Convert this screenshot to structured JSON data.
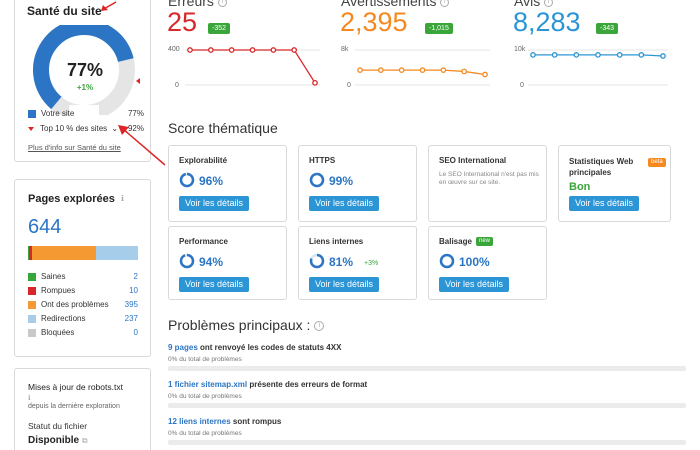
{
  "site_health": {
    "title": "Santé du site",
    "value": "77%",
    "delta": "+1%",
    "legend": [
      {
        "label": "Votre site",
        "value": "77%",
        "color": "#2b75c4"
      },
      {
        "label": "Top 10 % des sites",
        "value": "92%",
        "color": "#e02424"
      }
    ],
    "more_link": "Plus d'info sur Santé du site",
    "percent": 77
  },
  "crawled": {
    "title": "Pages explorées",
    "count": "644",
    "items": [
      {
        "label": "Saines",
        "value": "2",
        "color": "#3aa63a"
      },
      {
        "label": "Rompues",
        "value": "10",
        "color": "#d8282a"
      },
      {
        "label": "Ont des problèmes",
        "value": "395",
        "color": "#f59a33"
      },
      {
        "label": "Redirections",
        "value": "237",
        "color": "#a6cde9"
      },
      {
        "label": "Bloquées",
        "value": "0",
        "color": "#c8c8c8"
      }
    ]
  },
  "robots": {
    "title": "Mises à jour de robots.txt",
    "since": "depuis la dernière exploration",
    "status_label": "Statut du fichier",
    "status_value": "Disponible"
  },
  "metrics": {
    "errors": {
      "title": "Erreurs",
      "value": "25",
      "delta": "-352",
      "color": "#d8282a",
      "chip": "#3aa63a",
      "ymax": "400",
      "ymin": "0",
      "series": [
        400,
        400,
        400,
        400,
        400,
        400,
        25
      ]
    },
    "warnings": {
      "title": "Avertissements",
      "value": "2,395",
      "delta": "-1,015",
      "color": "#f5891f",
      "chip": "#3aa63a",
      "ymax": "8k",
      "ymin": "0",
      "series": [
        3400,
        3400,
        3400,
        3400,
        3400,
        3100,
        2395
      ]
    },
    "notices": {
      "title": "Avis",
      "value": "8,283",
      "delta": "-343",
      "color": "#2b95d6",
      "chip": "#3aa63a",
      "ymax": "10k",
      "ymin": "0",
      "series": [
        8600,
        8600,
        8600,
        8600,
        8600,
        8600,
        8283
      ]
    }
  },
  "thematic": {
    "title": "Score thématique",
    "details_label": "Voir les détails",
    "cards": [
      {
        "title": "Explorabilité",
        "score": "96%",
        "pct": 96
      },
      {
        "title": "HTTPS",
        "score": "99%",
        "pct": 99
      },
      {
        "title": "SEO International",
        "text": "Le SEO International n'est pas mis en œuvre sur ce site."
      },
      {
        "title": "Statistiques Web principales",
        "badge": "beta",
        "status": "Bon"
      },
      {
        "title": "Performance",
        "score": "94%",
        "pct": 94
      },
      {
        "title": "Liens internes",
        "score": "81%",
        "pct": 81,
        "delta": "+3%"
      },
      {
        "title": "Balisage",
        "badge": "new",
        "score": "100%",
        "pct": 100
      }
    ]
  },
  "issues": {
    "title": "Problèmes principaux :",
    "sub": "0% du total de problèmes",
    "items": [
      {
        "link": "9 pages",
        "text": " ont renvoyé les codes de statuts 4XX"
      },
      {
        "link": "1 fichier sitemap.xml",
        "text": " présente des erreurs de format"
      },
      {
        "link": "12 liens internes",
        "text": " sont rompus"
      }
    ]
  }
}
